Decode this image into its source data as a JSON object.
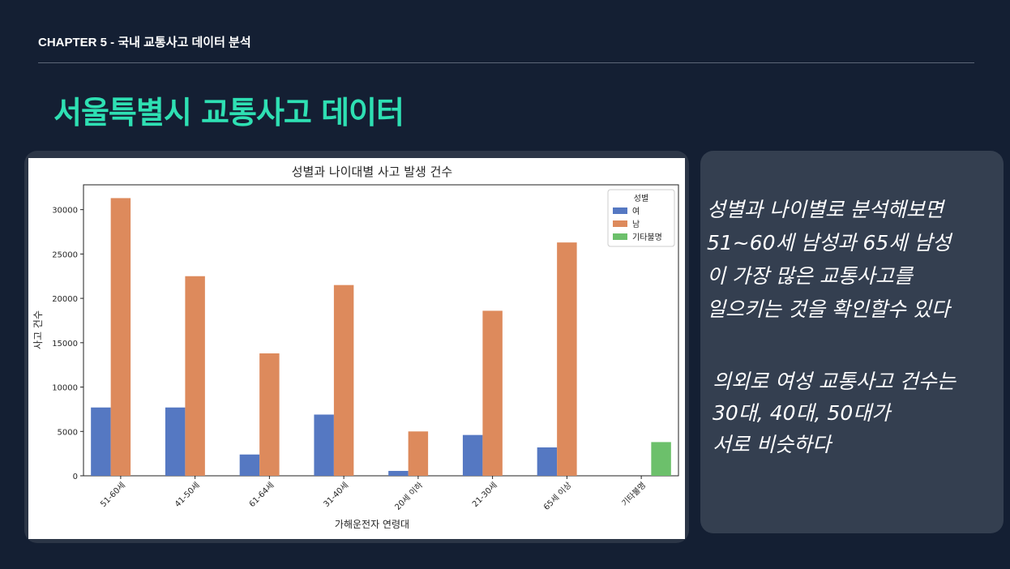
{
  "header": {
    "chapter": "CHAPTER 5 - 국내 교통사고 데이터 분석",
    "title": "서울특별시 교통사고 데이터"
  },
  "notes": {
    "paragraph1": "성별과 나이별로 분석해보면\n51~60세 남성과 65세 남성\n이 가장 많은 교통사고를\n일으키는 것을 확인할수 있다",
    "paragraph2": "의외로 여성 교통사고 건수는\n30대, 40대, 50대가\n서로 비슷하다"
  },
  "chart_data": {
    "type": "bar",
    "title": "성별과 나이대별 사고 발생 건수",
    "xlabel": "가해운전자 연령대",
    "ylabel": "사고 건수",
    "categories": [
      "51-60세",
      "41-50세",
      "61-64세",
      "31-40세",
      "20세 이하",
      "21-30세",
      "65세 이상",
      "기타불명"
    ],
    "ylim": [
      0,
      32800
    ],
    "yticks": [
      0,
      5000,
      10000,
      15000,
      20000,
      25000,
      30000
    ],
    "legend": {
      "title": "성별",
      "placement": "top-right"
    },
    "series": [
      {
        "name": "여",
        "color": "#5578c2",
        "values": [
          7700,
          7700,
          2400,
          6900,
          550,
          4600,
          3200,
          null
        ]
      },
      {
        "name": "남",
        "color": "#dd8a5c",
        "values": [
          31300,
          22500,
          13800,
          21500,
          5000,
          18600,
          26300,
          null
        ]
      },
      {
        "name": "기타불명",
        "color": "#6cc06b",
        "values": [
          null,
          null,
          null,
          null,
          null,
          null,
          null,
          3800
        ]
      }
    ]
  }
}
